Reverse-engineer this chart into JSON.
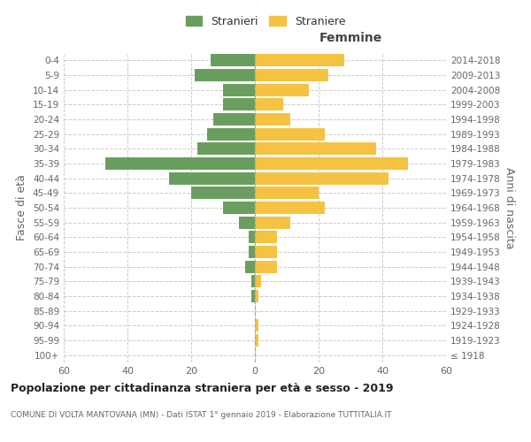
{
  "age_groups": [
    "100+",
    "95-99",
    "90-94",
    "85-89",
    "80-84",
    "75-79",
    "70-74",
    "65-69",
    "60-64",
    "55-59",
    "50-54",
    "45-49",
    "40-44",
    "35-39",
    "30-34",
    "25-29",
    "20-24",
    "15-19",
    "10-14",
    "5-9",
    "0-4"
  ],
  "birth_years": [
    "≤ 1918",
    "1919-1923",
    "1924-1928",
    "1929-1933",
    "1934-1938",
    "1939-1943",
    "1944-1948",
    "1949-1953",
    "1954-1958",
    "1959-1963",
    "1964-1968",
    "1969-1973",
    "1974-1978",
    "1979-1983",
    "1984-1988",
    "1989-1993",
    "1994-1998",
    "1999-2003",
    "2004-2008",
    "2009-2013",
    "2014-2018"
  ],
  "males": [
    0,
    0,
    0,
    0,
    1,
    1,
    3,
    2,
    2,
    5,
    10,
    20,
    27,
    47,
    18,
    15,
    13,
    10,
    10,
    19,
    14
  ],
  "females": [
    0,
    1,
    1,
    0,
    1,
    2,
    7,
    7,
    7,
    11,
    22,
    20,
    42,
    48,
    38,
    22,
    11,
    9,
    17,
    23,
    28
  ],
  "male_color": "#6a9e5e",
  "female_color": "#f5c242",
  "male_label": "Stranieri",
  "female_label": "Straniere",
  "femmine_label": "Femmine",
  "fasce_eta_label": "Fasce di età",
  "anni_nascita_label": "Anni di nascita",
  "title": "Popolazione per cittadinanza straniera per età e sesso - 2019",
  "subtitle": "COMUNE DI VOLTA MANTOVANA (MN) - Dati ISTAT 1° gennaio 2019 - Elaborazione TUTTITALIA.IT",
  "xlim": 60,
  "bg_color": "#ffffff",
  "grid_color": "#cccccc",
  "axis_label_color": "#666666",
  "bar_height": 0.85
}
